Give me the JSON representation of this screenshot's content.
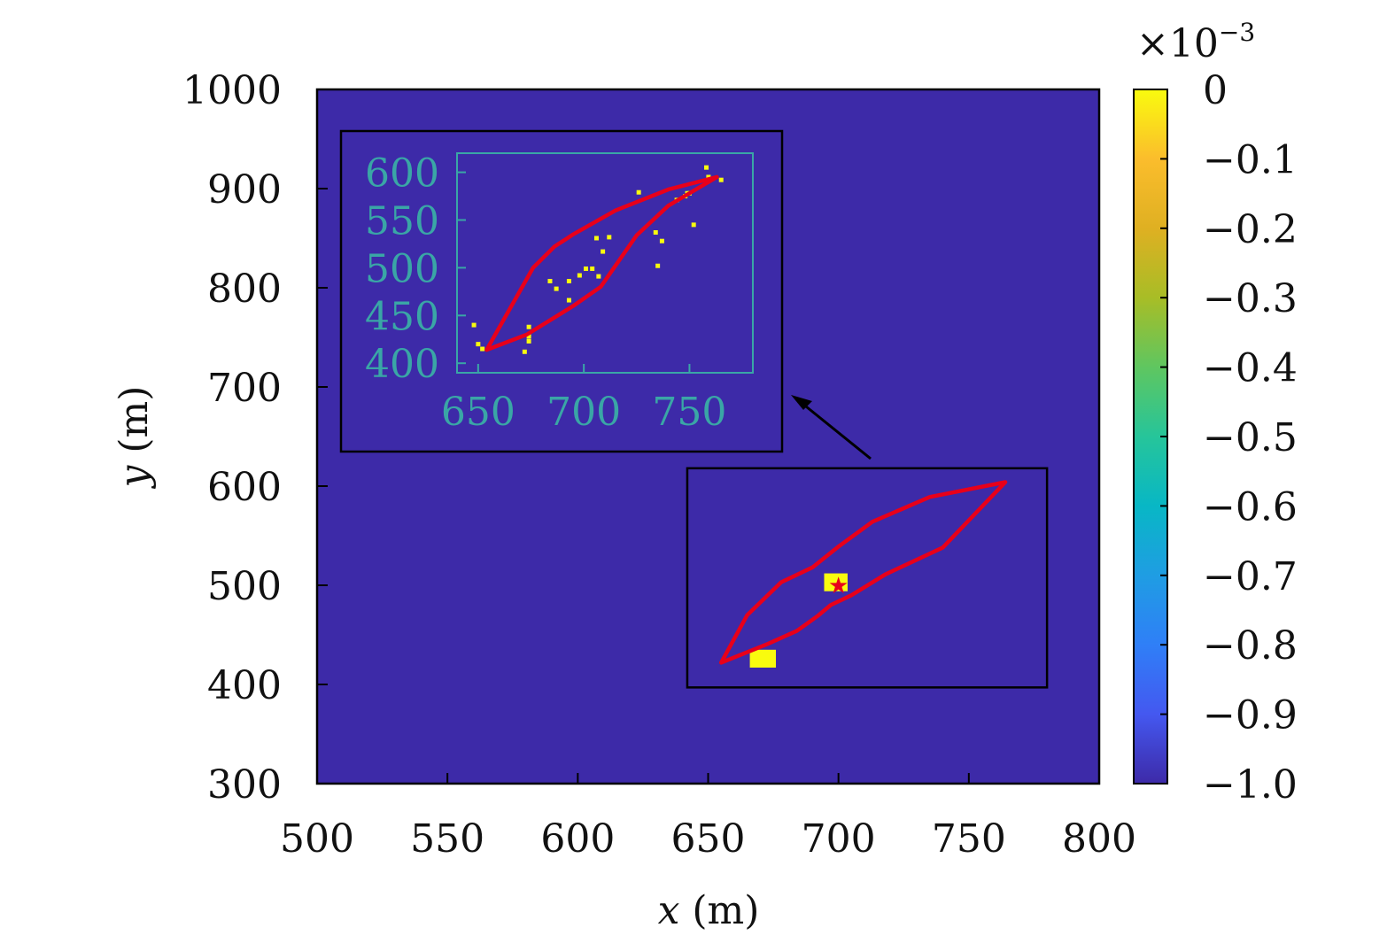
{
  "chart_data": {
    "type": "heatmap",
    "title": "",
    "xlabel": {
      "var": "x",
      "unit": " (m)"
    },
    "ylabel": {
      "var": "y",
      "unit": " (m)"
    },
    "xlim": [
      500,
      800
    ],
    "ylim": [
      300,
      1000
    ],
    "xticks": [
      500,
      550,
      600,
      650,
      700,
      750,
      800
    ],
    "yticks": [
      300,
      400,
      500,
      600,
      700,
      800,
      900,
      1000
    ],
    "background_value": -0.001,
    "hot_cells": [
      {
        "x": 699,
        "y": 503,
        "w": 9,
        "h": 18,
        "value": 0
      },
      {
        "x": 671,
        "y": 426,
        "w": 10,
        "h": 18,
        "value": 0
      }
    ],
    "source_marker": {
      "x": 700,
      "y": 500,
      "symbol": "★"
    },
    "polygon": [
      [
        655,
        422
      ],
      [
        673,
        441
      ],
      [
        684,
        454
      ],
      [
        692,
        469
      ],
      [
        697,
        480
      ],
      [
        705,
        490
      ],
      [
        718,
        511
      ],
      [
        740,
        538
      ],
      [
        764,
        604
      ],
      [
        735,
        589
      ],
      [
        713,
        564
      ],
      [
        700,
        539
      ],
      [
        690,
        518
      ],
      [
        678,
        503
      ],
      [
        665,
        470
      ],
      [
        655,
        422
      ]
    ],
    "zoom_box": {
      "x": [
        642,
        780
      ],
      "y": [
        397,
        618
      ]
    },
    "colorbar": {
      "exponent_label": "×10",
      "exponent_power": "−3",
      "ticks": [
        "0",
        "−0.1",
        "−0.2",
        "−0.3",
        "−0.4",
        "−0.5",
        "−0.6",
        "−0.7",
        "−0.8",
        "−0.9",
        "−1.0"
      ],
      "colors": [
        "#f9fb0e",
        "#fbbd2c",
        "#dfb022",
        "#a8bd26",
        "#5fc660",
        "#26c59a",
        "#08b7c5",
        "#1f9de3",
        "#2f7ff7",
        "#4458f0",
        "#3d2aa8"
      ]
    },
    "inset": {
      "xlim": [
        640,
        780
      ],
      "ylim": [
        390,
        620
      ],
      "xticks": [
        650,
        700,
        750
      ],
      "yticks": [
        400,
        450,
        500,
        550,
        600
      ],
      "tick_color": "#3aa6a6",
      "points": [
        [
          648,
          440
        ],
        [
          650,
          420
        ],
        [
          652,
          415
        ],
        [
          672,
          412
        ],
        [
          674,
          438
        ],
        [
          674,
          428
        ],
        [
          674,
          423
        ],
        [
          684,
          486
        ],
        [
          687,
          478
        ],
        [
          693,
          486
        ],
        [
          693,
          466
        ],
        [
          698,
          492
        ],
        [
          701,
          499
        ],
        [
          704,
          499
        ],
        [
          706,
          531
        ],
        [
          707,
          491
        ],
        [
          709,
          517
        ],
        [
          712,
          532
        ],
        [
          726,
          579
        ],
        [
          734,
          537
        ],
        [
          735,
          502
        ],
        [
          737,
          528
        ],
        [
          744,
          571
        ],
        [
          748,
          575
        ],
        [
          749,
          578
        ],
        [
          750,
          578
        ],
        [
          752,
          545
        ],
        [
          758,
          605
        ],
        [
          759,
          595
        ],
        [
          765,
          592
        ]
      ],
      "polygon": [
        [
          654,
          414
        ],
        [
          673,
          430
        ],
        [
          695,
          460
        ],
        [
          708,
          480
        ],
        [
          725,
          534
        ],
        [
          740,
          565
        ],
        [
          763,
          595
        ],
        [
          740,
          582
        ],
        [
          715,
          560
        ],
        [
          695,
          535
        ],
        [
          686,
          522
        ],
        [
          676,
          500
        ],
        [
          654,
          414
        ]
      ]
    }
  }
}
